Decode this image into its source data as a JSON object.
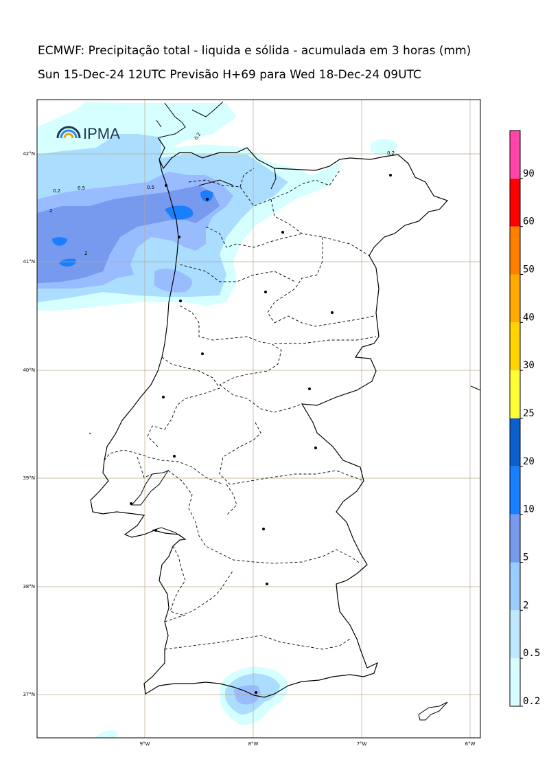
{
  "title_line1": "ECMWF: Precipitação total - liquida e sólida - acumulada em 3 horas (mm)",
  "title_line2": "Sun 15-Dec-24 12UTC Previsão H+69 para Wed 18-Dec-24 09UTC",
  "logo_text": "IPMA",
  "lat_labels": [
    "42°N",
    "41°N",
    "40°N",
    "39°N",
    "38°N",
    "37°N"
  ],
  "lon_labels": [
    "9°W",
    "8°W",
    "7°W",
    "6°W"
  ],
  "colorbar": {
    "levels": [
      "0.2",
      "0.5",
      "2",
      "5",
      "10",
      "20",
      "25",
      "30",
      "40",
      "50",
      "60",
      "90"
    ],
    "colors": [
      "#d6ffff",
      "#bfe8ff",
      "#99ccff",
      "#7799ee",
      "#1a7fff",
      "#0a5fcc",
      "#ffff33",
      "#ffd400",
      "#ffaa00",
      "#ff7f00",
      "#ff0000",
      "#ff44aa"
    ]
  },
  "contour_labels": [
    "0.2",
    "0.2",
    "0.2",
    "0.5",
    "0.5",
    "2",
    "2"
  ],
  "precip_colors": {
    "light": "#d6ffff",
    "l2": "#aaddff",
    "l3": "#99bbff",
    "l4": "#7799ee",
    "l5": "#1a7fff"
  }
}
